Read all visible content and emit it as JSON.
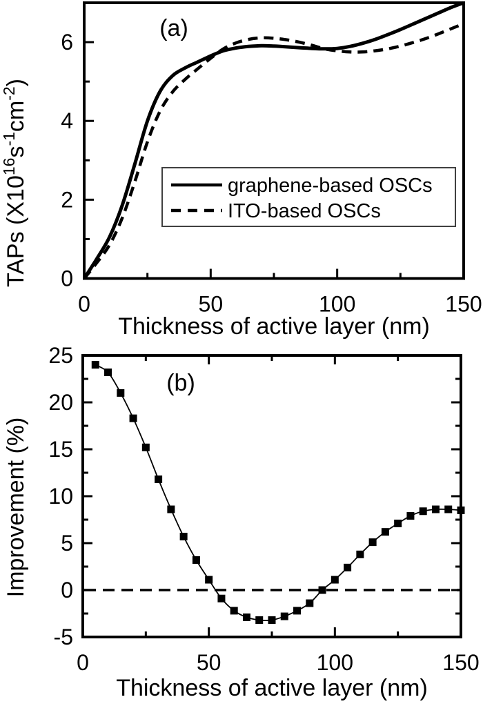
{
  "figure": {
    "background": "#ffffff",
    "ink": "#000000",
    "legend_border": "#404040"
  },
  "panel_a": {
    "label": "(a)",
    "xlabel": "Thickness of active layer (nm)",
    "ylabel_runs": [
      [
        "TAPs (X10",
        0
      ],
      [
        "16",
        1
      ],
      [
        "s",
        0
      ],
      [
        "-1",
        1
      ],
      [
        "cm",
        0
      ],
      [
        "-2",
        1
      ],
      [
        ")",
        0
      ]
    ],
    "x_major_ticks": [
      0,
      50,
      100,
      150
    ],
    "x_minor_ticks": [
      25,
      75,
      125
    ],
    "y_major_ticks": [
      0,
      2,
      4,
      6
    ],
    "y_minor_ticks": [
      1,
      3,
      5,
      7
    ],
    "legend": [
      {
        "label": "graphene-based OSCs",
        "style": "solid"
      },
      {
        "label": "ITO-based OSCs",
        "style": "dashed"
      }
    ]
  },
  "panel_b": {
    "label": "(b)",
    "xlabel": "Thickness of active layer (nm)",
    "ylabel": "Improvement (%)",
    "x_major_ticks": [
      0,
      50,
      100,
      150
    ],
    "x_minor_ticks": [
      25,
      75,
      125
    ],
    "y_major_ticks": [
      -5,
      0,
      5,
      10,
      15,
      20,
      25
    ],
    "y_minor_ticks": [
      -2.5,
      2.5,
      7.5,
      12.5,
      17.5,
      22.5
    ],
    "zero_line": 0
  },
  "chart_data": [
    {
      "type": "line",
      "panel": "a",
      "title": "",
      "xlabel": "Thickness of active layer (nm)",
      "ylabel": "TAPs (X10^16 s^-1 cm^-2)",
      "xlim": [
        0,
        150
      ],
      "ylim": [
        0,
        7
      ],
      "grid": false,
      "legend_position": "center-right-box",
      "x": [
        0,
        5,
        10,
        15,
        20,
        25,
        30,
        35,
        40,
        45,
        50,
        55,
        60,
        65,
        70,
        75,
        80,
        85,
        90,
        95,
        100,
        105,
        110,
        115,
        120,
        125,
        130,
        135,
        140,
        145,
        150
      ],
      "series": [
        {
          "name": "graphene-based OSCs",
          "style": "solid",
          "values": [
            0,
            0.5,
            1.05,
            1.85,
            2.9,
            4.0,
            4.75,
            5.15,
            5.35,
            5.5,
            5.65,
            5.78,
            5.85,
            5.89,
            5.91,
            5.9,
            5.88,
            5.86,
            5.84,
            5.83,
            5.84,
            5.89,
            5.97,
            6.07,
            6.19,
            6.32,
            6.46,
            6.6,
            6.74,
            6.88,
            7.0
          ]
        },
        {
          "name": "ITO-based OSCs",
          "style": "dashed",
          "values": [
            0,
            0.4,
            0.85,
            1.53,
            2.45,
            3.47,
            4.25,
            4.74,
            5.06,
            5.33,
            5.59,
            5.83,
            5.98,
            6.07,
            6.11,
            6.1,
            6.06,
            6.0,
            5.92,
            5.83,
            5.78,
            5.75,
            5.75,
            5.78,
            5.83,
            5.9,
            5.99,
            6.09,
            6.21,
            6.34,
            6.47
          ]
        }
      ],
      "annotations": [
        "(a)"
      ]
    },
    {
      "type": "line",
      "panel": "b",
      "title": "",
      "xlabel": "Thickness of active layer (nm)",
      "ylabel": "Improvement (%)",
      "xlim": [
        0,
        150
      ],
      "ylim": [
        -5,
        25
      ],
      "grid": false,
      "reference_line_y": 0,
      "x": [
        5,
        10,
        15,
        20,
        25,
        30,
        35,
        40,
        45,
        50,
        55,
        60,
        65,
        70,
        75,
        80,
        85,
        90,
        95,
        100,
        105,
        110,
        115,
        120,
        125,
        130,
        135,
        140,
        145,
        150
      ],
      "series": [
        {
          "name": "Improvement",
          "style": "square-markers-thin-line",
          "values": [
            24.0,
            23.2,
            21.0,
            18.3,
            15.2,
            11.8,
            8.6,
            5.7,
            3.2,
            1.1,
            -0.9,
            -2.2,
            -2.9,
            -3.2,
            -3.2,
            -2.8,
            -2.2,
            -1.4,
            0.0,
            1.1,
            2.4,
            3.8,
            5.1,
            6.2,
            7.1,
            7.9,
            8.4,
            8.6,
            8.6,
            8.5
          ]
        }
      ],
      "annotations": [
        "(b)"
      ]
    }
  ]
}
